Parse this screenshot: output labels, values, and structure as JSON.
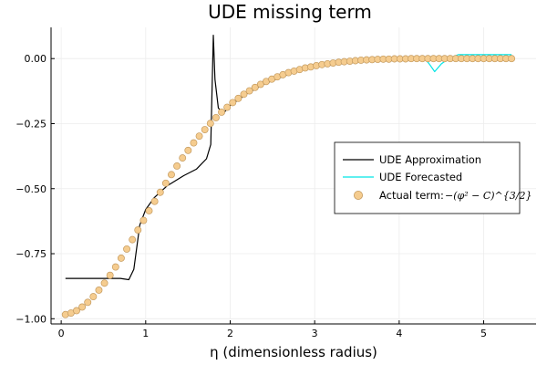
{
  "chart_data": {
    "type": "line",
    "title": "UDE missing term",
    "xlabel": "η (dimensionless radius)",
    "ylabel": "",
    "xlim": [
      -0.12,
      5.62
    ],
    "ylim": [
      -1.02,
      0.12
    ],
    "xticks": [
      0,
      1,
      2,
      3,
      4,
      5
    ],
    "yticks": [
      -1.0,
      -0.75,
      -0.5,
      -0.25,
      0.0
    ],
    "xtick_labels": [
      "0",
      "1",
      "2",
      "3",
      "4",
      "5"
    ],
    "ytick_labels": [
      "−1.00",
      "−0.75",
      "−0.50",
      "−0.25",
      "0.00"
    ],
    "grid": true,
    "legend_position": "right",
    "colors": {
      "approx": "#000000",
      "forecast": "#00e5e5",
      "actual_fill": "#f5cc8f",
      "actual_edge": "#c49a5e",
      "grid": "#ececec"
    },
    "series": [
      {
        "name": "UDE Approximation",
        "kind": "line",
        "x": [
          0.05,
          0.7,
          0.8,
          0.86,
          0.93,
          1.0,
          1.1,
          1.25,
          1.45,
          1.6,
          1.72,
          1.77,
          1.8,
          1.82,
          1.86,
          1.92,
          2.0,
          2.2,
          2.4,
          2.6,
          2.8,
          3.0,
          3.2,
          3.4,
          3.6,
          3.8,
          4.0,
          4.2,
          4.3
        ],
        "y": [
          -0.845,
          -0.845,
          -0.85,
          -0.81,
          -0.64,
          -0.58,
          -0.535,
          -0.49,
          -0.45,
          -0.425,
          -0.385,
          -0.33,
          0.09,
          -0.08,
          -0.19,
          -0.21,
          -0.18,
          -0.135,
          -0.098,
          -0.072,
          -0.048,
          -0.03,
          -0.02,
          -0.012,
          -0.006,
          -0.002,
          0.0,
          0.0,
          0.0
        ]
      },
      {
        "name": "UDE Forecasted",
        "kind": "line",
        "x": [
          4.3,
          4.35,
          4.42,
          4.5,
          4.6,
          4.7,
          4.85,
          5.0,
          5.33
        ],
        "y": [
          0.0,
          -0.018,
          -0.05,
          -0.02,
          0.003,
          0.015,
          0.015,
          0.015,
          0.015
        ]
      },
      {
        "name": "Actual term:",
        "legend_math": "−(φ² − C)^{3/2}",
        "kind": "scatter",
        "x": [
          0.05,
          0.116,
          0.182,
          0.248,
          0.314,
          0.38,
          0.446,
          0.512,
          0.578,
          0.644,
          0.71,
          0.776,
          0.842,
          0.908,
          0.974,
          1.04,
          1.106,
          1.172,
          1.238,
          1.304,
          1.37,
          1.436,
          1.502,
          1.568,
          1.634,
          1.7,
          1.766,
          1.832,
          1.898,
          1.964,
          2.03,
          2.096,
          2.162,
          2.228,
          2.294,
          2.36,
          2.426,
          2.492,
          2.558,
          2.624,
          2.69,
          2.756,
          2.822,
          2.888,
          2.954,
          3.02,
          3.086,
          3.152,
          3.218,
          3.284,
          3.35,
          3.416,
          3.482,
          3.548,
          3.614,
          3.68,
          3.746,
          3.812,
          3.878,
          3.944,
          4.01,
          4.076,
          4.142,
          4.208,
          4.274,
          4.34,
          4.406,
          4.472,
          4.538,
          4.604,
          4.67,
          4.736,
          4.802,
          4.868,
          4.934,
          5.0,
          5.066,
          5.132,
          5.198,
          5.264,
          5.33
        ],
        "y": [
          -0.984,
          -0.978,
          -0.969,
          -0.955,
          -0.937,
          -0.915,
          -0.89,
          -0.863,
          -0.833,
          -0.801,
          -0.767,
          -0.732,
          -0.696,
          -0.659,
          -0.622,
          -0.585,
          -0.549,
          -0.514,
          -0.479,
          -0.446,
          -0.413,
          -0.382,
          -0.353,
          -0.324,
          -0.298,
          -0.273,
          -0.249,
          -0.227,
          -0.206,
          -0.187,
          -0.169,
          -0.153,
          -0.137,
          -0.124,
          -0.111,
          -0.099,
          -0.088,
          -0.079,
          -0.07,
          -0.062,
          -0.054,
          -0.048,
          -0.042,
          -0.036,
          -0.032,
          -0.027,
          -0.023,
          -0.02,
          -0.017,
          -0.014,
          -0.012,
          -0.01,
          -0.008,
          -0.006,
          -0.005,
          -0.004,
          -0.003,
          -0.002,
          -0.002,
          -0.001,
          -0.001,
          -0.001,
          0.0,
          0.0,
          0.0,
          0.0,
          0.0,
          0.0,
          0.0,
          0.0,
          0.0,
          0.0,
          0.0,
          0.0,
          0.0,
          0.0,
          0.0,
          0.0,
          0.0,
          0.0,
          0.0
        ]
      }
    ]
  }
}
